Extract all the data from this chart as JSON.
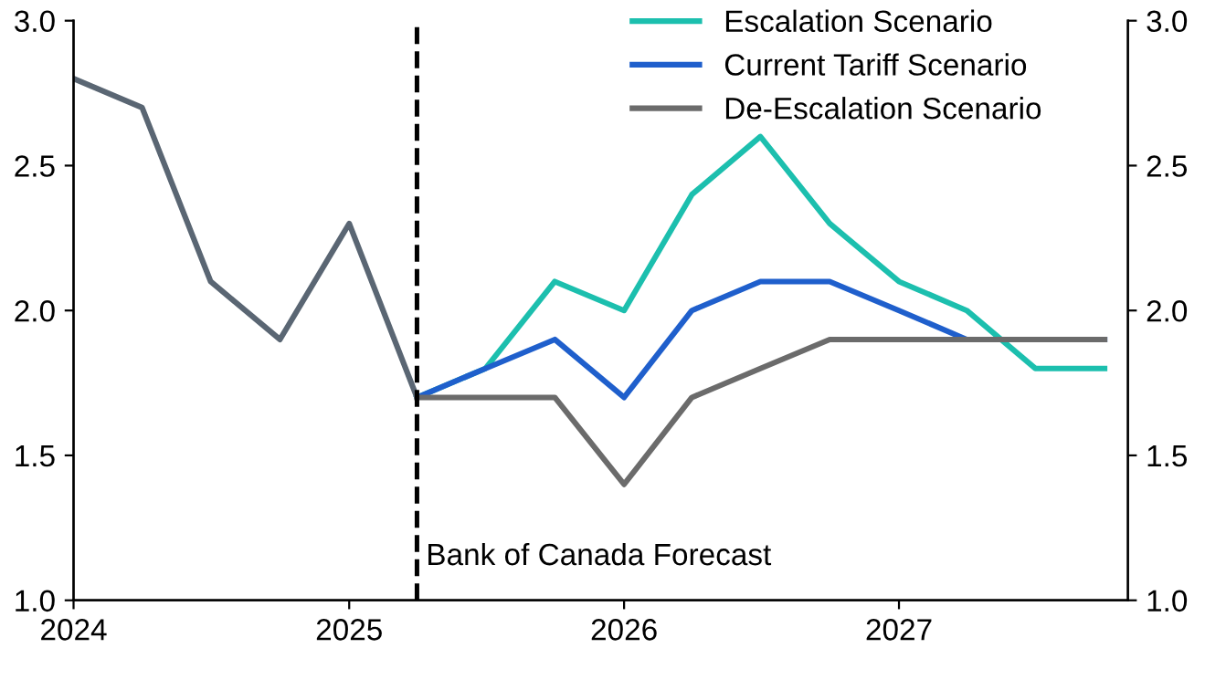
{
  "chart_data": {
    "type": "line",
    "series": [
      {
        "name": "Escalation Scenario",
        "color": "#1cbfae",
        "x": [
          "2025-04",
          "2025-07",
          "2025-10",
          "2026-01",
          "2026-04",
          "2026-07",
          "2026-10",
          "2027-01",
          "2027-04",
          "2027-07",
          "2027-10"
        ],
        "values": [
          1.7,
          1.8,
          2.1,
          2.0,
          2.4,
          2.6,
          2.3,
          2.1,
          2.0,
          1.8,
          1.8
        ]
      },
      {
        "name": "Current Tariff Scenario",
        "color": "#1f5fcc",
        "x": [
          "2025-04",
          "2025-07",
          "2025-10",
          "2026-01",
          "2026-04",
          "2026-07",
          "2026-10",
          "2027-01",
          "2027-04",
          "2027-07",
          "2027-10"
        ],
        "values": [
          1.7,
          1.8,
          1.9,
          1.7,
          2.0,
          2.1,
          2.1,
          2.0,
          1.9,
          1.9,
          1.9
        ]
      },
      {
        "name": "De-Escalation Scenario",
        "color": "#6b6b6b",
        "x": [
          "2025-04",
          "2025-07",
          "2025-10",
          "2026-01",
          "2026-04",
          "2026-07",
          "2026-10",
          "2027-01",
          "2027-04",
          "2027-07",
          "2027-10"
        ],
        "values": [
          1.7,
          1.7,
          1.7,
          1.4,
          1.7,
          1.8,
          1.9,
          1.9,
          1.9,
          1.9,
          1.9
        ]
      },
      {
        "color": "#5a6673",
        "x": [
          "2024-01",
          "2024-04",
          "2024-07",
          "2024-10",
          "2025-01",
          "2025-04"
        ],
        "values": [
          2.8,
          2.7,
          2.1,
          1.9,
          2.3,
          1.7
        ]
      }
    ],
    "xlim": [
      "2024-01",
      "2027-11"
    ],
    "xticks": [
      {
        "value": "2024-01",
        "label": "2024"
      },
      {
        "value": "2025-01",
        "label": "2025"
      },
      {
        "value": "2026-01",
        "label": "2026"
      },
      {
        "value": "2027-01",
        "label": "2027"
      }
    ],
    "ylim": [
      1.0,
      3.0
    ],
    "yticks": [
      {
        "value": 1.0,
        "label": "1.0"
      },
      {
        "value": 1.5,
        "label": "1.5"
      },
      {
        "value": 2.0,
        "label": "2.0"
      },
      {
        "value": 2.5,
        "label": "2.5"
      },
      {
        "value": 3.0,
        "label": "3.0"
      }
    ],
    "y2lim": [
      1.0,
      3.0
    ],
    "y2ticks": [
      {
        "value": 1.0,
        "label": "1.0"
      },
      {
        "value": 1.5,
        "label": "1.5"
      },
      {
        "value": 2.0,
        "label": "2.0"
      },
      {
        "value": 2.5,
        "label": "2.5"
      },
      {
        "value": 3.0,
        "label": "3.0"
      }
    ],
    "ref_lines": [
      {
        "axis": "x",
        "value": "2025-04",
        "label": "Bank of Canada Forecast",
        "color": "#000000",
        "line_style": "dashed"
      }
    ],
    "legend": "top right",
    "grid": false,
    "marker": "none",
    "line_style": "solid"
  }
}
